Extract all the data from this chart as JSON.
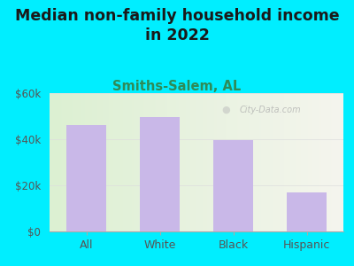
{
  "title_line1": "Median non-family household income",
  "title_line2": "in 2022",
  "subtitle": "Smiths-Salem, AL",
  "categories": [
    "All",
    "White",
    "Black",
    "Hispanic"
  ],
  "values": [
    46000,
    49500,
    39500,
    17000
  ],
  "bar_color": "#c9b8e8",
  "title_fontsize": 12.5,
  "subtitle_fontsize": 10.5,
  "subtitle_color": "#2e8b57",
  "title_color": "#1a1a1a",
  "tick_color": "#555555",
  "bg_outer": "#00eeff",
  "ylim": [
    0,
    60000
  ],
  "yticks": [
    0,
    20000,
    40000,
    60000
  ],
  "ytick_labels": [
    "$0",
    "$20k",
    "$40k",
    "$60k"
  ],
  "watermark": "City-Data.com",
  "grid_color": "#dddddd",
  "grid_alpha": 0.8
}
